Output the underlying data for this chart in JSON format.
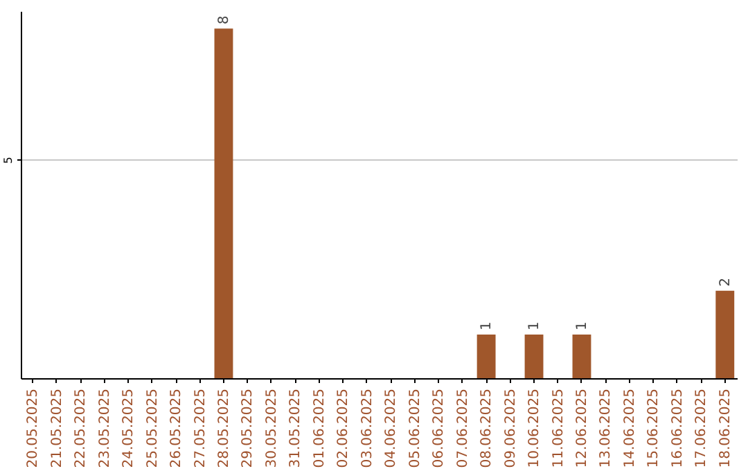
{
  "chart_data": {
    "type": "bar",
    "categories": [
      "20.05.2025",
      "21.05.2025",
      "22.05.2025",
      "23.05.2025",
      "24.05.2025",
      "25.05.2025",
      "26.05.2025",
      "27.05.2025",
      "28.05.2025",
      "29.05.2025",
      "30.05.2025",
      "31.05.2025",
      "01.06.2025",
      "02.06.2025",
      "03.06.2025",
      "04.06.2025",
      "05.06.2025",
      "06.06.2025",
      "07.06.2025",
      "08.06.2025",
      "09.06.2025",
      "10.06.2025",
      "11.06.2025",
      "12.06.2025",
      "13.06.2025",
      "14.06.2025",
      "15.06.2025",
      "16.06.2025",
      "17.06.2025",
      "18.06.2025"
    ],
    "values": [
      0,
      0,
      0,
      0,
      0,
      0,
      0,
      0,
      8,
      0,
      0,
      0,
      0,
      0,
      0,
      0,
      0,
      0,
      0,
      1,
      0,
      1,
      0,
      1,
      0,
      0,
      0,
      0,
      0,
      2
    ],
    "value_labels": [
      null,
      null,
      null,
      null,
      null,
      null,
      null,
      null,
      "8",
      null,
      null,
      null,
      null,
      null,
      null,
      null,
      null,
      null,
      null,
      "1",
      null,
      "1",
      null,
      "1",
      null,
      null,
      null,
      null,
      null,
      "2"
    ],
    "color": "#a0572b",
    "ylim": [
      0,
      8.4
    ],
    "yticks": [
      5
    ],
    "grid": "y"
  }
}
